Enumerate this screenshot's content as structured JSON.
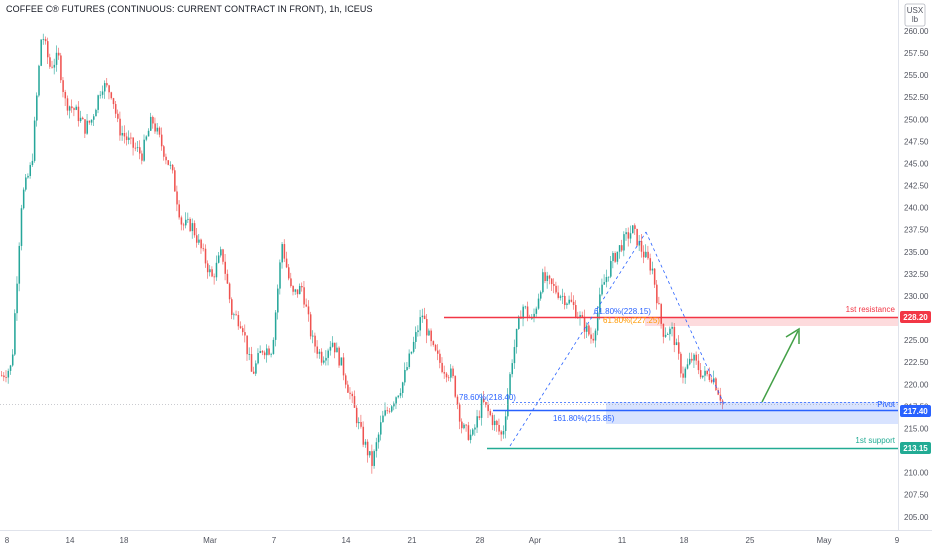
{
  "title": "COFFEE C® FUTURES (CONTINUOUS: CURRENT CONTRACT IN FRONT), 1h, ICEUS",
  "unit_label_line1": "USX",
  "unit_label_line2": "lb",
  "colors": {
    "up": "#26a69a",
    "down": "#ef5350",
    "resistance": "#f23645",
    "pivot": "#2962ff",
    "support": "#22ab94",
    "fib": "#2962ff",
    "fib_orange": "#ff9800",
    "arrow": "#43a047"
  },
  "chart_data": {
    "type": "candlestick",
    "y_range": [
      203.5,
      263.5
    ],
    "y_ticks": [
      "205.00",
      "207.50",
      "210.00",
      "212.50",
      "215.00",
      "217.50",
      "220.00",
      "222.50",
      "225.00",
      "227.50",
      "230.00",
      "232.50",
      "235.00",
      "237.50",
      "240.00",
      "242.50",
      "245.00",
      "247.50",
      "250.00",
      "252.50",
      "255.00",
      "257.50",
      "260.00"
    ],
    "x_ticks": [
      "8",
      "14",
      "18",
      "Mar",
      "7",
      "14",
      "21",
      "28",
      "Apr",
      "11",
      "18",
      "25",
      "May",
      "9"
    ],
    "price_path": [
      [
        0,
        221
      ],
      [
        1.5,
        222
      ],
      [
        3,
        241
      ],
      [
        4.5,
        245
      ],
      [
        6,
        260
      ],
      [
        7.2,
        256
      ],
      [
        8.5,
        257
      ],
      [
        9.5,
        252
      ],
      [
        11,
        251
      ],
      [
        12.5,
        249
      ],
      [
        13.5,
        250
      ],
      [
        15,
        254
      ],
      [
        16.5,
        253
      ],
      [
        17.5,
        249
      ],
      [
        18.5,
        248
      ],
      [
        19.5,
        247
      ],
      [
        21,
        246
      ],
      [
        22.5,
        250
      ],
      [
        24,
        247
      ],
      [
        25.5,
        244
      ],
      [
        27,
        238
      ],
      [
        28.5,
        238
      ],
      [
        30,
        235
      ],
      [
        31.5,
        232
      ],
      [
        33,
        235
      ],
      [
        34.5,
        228
      ],
      [
        36,
        227
      ],
      [
        37.5,
        221
      ],
      [
        39,
        224
      ],
      [
        40.5,
        224
      ],
      [
        42,
        236
      ],
      [
        43.5,
        230
      ],
      [
        45,
        231
      ],
      [
        46.5,
        225
      ],
      [
        48,
        223
      ],
      [
        49.5,
        225
      ],
      [
        51,
        222
      ],
      [
        52.5,
        218
      ],
      [
        54,
        214
      ],
      [
        55.5,
        211
      ],
      [
        57,
        216
      ],
      [
        58.5,
        218
      ],
      [
        60,
        220
      ],
      [
        61.5,
        224
      ],
      [
        63,
        228
      ],
      [
        64.5,
        224
      ],
      [
        66,
        222
      ],
      [
        67.5,
        221
      ],
      [
        69,
        215
      ],
      [
        70.5,
        214
      ],
      [
        72,
        218
      ],
      [
        73.5,
        216
      ],
      [
        75,
        214
      ],
      [
        76.5,
        223
      ],
      [
        78,
        229
      ],
      [
        79.5,
        227
      ],
      [
        81,
        232
      ],
      [
        82.5,
        231
      ],
      [
        84,
        230
      ],
      [
        85.5,
        229
      ],
      [
        87,
        227
      ],
      [
        88.5,
        225
      ],
      [
        90,
        231
      ],
      [
        91.5,
        234
      ],
      [
        93,
        236
      ],
      [
        94.5,
        237.5
      ],
      [
        96,
        235
      ],
      [
        97.5,
        233
      ],
      [
        99,
        226
      ],
      [
        100.5,
        226
      ],
      [
        102,
        221
      ],
      [
        103.5,
        223
      ],
      [
        105,
        221
      ],
      [
        106.5,
        221
      ],
      [
        108,
        218
      ]
    ],
    "series": [
      {
        "name": "1st resistance",
        "value": 228.2,
        "badge": "228.20"
      },
      {
        "name": "Pivot",
        "value": 217.4,
        "badge": "217.40"
      },
      {
        "name": "1st support",
        "value": 213.15,
        "badge": "213.15"
      }
    ],
    "fib_labels": [
      {
        "text": "61.80%(228.15)",
        "value": 228.15,
        "color": "fib"
      },
      {
        "text": "61.80%(227.25)",
        "value": 227.25,
        "color": "fib_orange"
      },
      {
        "text": "78.60%(218.40)",
        "value": 218.4,
        "color": "fib"
      },
      {
        "text": "161.80%(215.85)",
        "value": 215.85,
        "color": "fib"
      }
    ],
    "current_price": 217.8,
    "grid": false
  }
}
